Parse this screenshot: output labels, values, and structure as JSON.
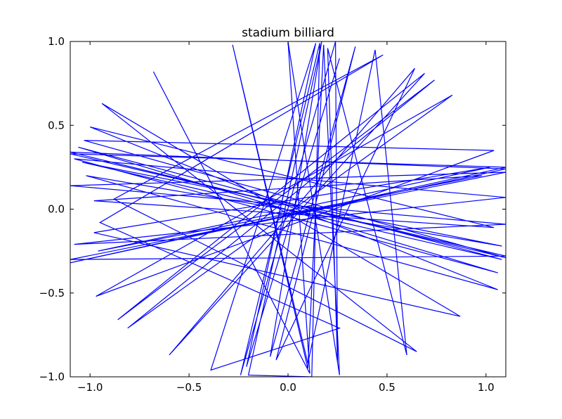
{
  "chart_data": {
    "type": "line",
    "title": "stadium billiard",
    "xlabel": "",
    "ylabel": "",
    "xlim": [
      -1.1,
      1.1
    ],
    "ylim": [
      -1.0,
      1.0
    ],
    "x_ticks": [
      -1.0,
      -0.5,
      0.0,
      0.5,
      1.0
    ],
    "x_tick_labels": [
      "−1.0",
      "−0.5",
      "0.0",
      "0.5",
      "1.0"
    ],
    "y_ticks": [
      -1.0,
      -0.5,
      0.0,
      0.5,
      1.0
    ],
    "y_tick_labels": [
      "−1.0",
      "−0.5",
      "0.0",
      "0.5",
      "1.0"
    ],
    "grid": false,
    "line_color": "#0000ff",
    "series": [
      {
        "x": [
          -0.68,
          0.11,
          0.0,
          0.26,
          0.18,
          0.1,
          -0.28,
          0.1,
          0.44,
          0.6,
          0.2,
          0.25,
          0.24,
          -0.24,
          0.16,
          0.12,
          -0.2,
          0.17,
          -0.09,
          0.34,
          -0.06,
          0.64,
          -0.6,
          0.69,
          -0.86,
          0.74,
          -0.81,
          0.83,
          -0.97,
          1.04,
          -1.03,
          1.1,
          -1.1,
          1.1,
          -1.1,
          1.1,
          -1.1,
          1.1,
          -1.1,
          1.1,
          -1.1,
          1.1,
          -1.08,
          1.1,
          -1.08,
          1.06,
          -1.06,
          1.08,
          -1.04,
          1.08,
          -1.02,
          1.06,
          -1.0,
          1.04,
          -0.98,
          0.98,
          -0.96,
          1.02,
          -0.98,
          0.87,
          -0.94,
          0.65,
          -0.88,
          0.48,
          -0.95,
          0.26,
          -0.39,
          0.14,
          -0.21,
          0.26
        ],
        "y": [
          0.82,
          -0.98,
          1.0,
          -0.99,
          0.98,
          -0.95,
          0.98,
          -0.92,
          0.95,
          -0.87,
          0.96,
          -0.92,
          1.0,
          -0.99,
          0.99,
          -1.0,
          -0.99,
          1.0,
          -0.88,
          0.97,
          -0.9,
          0.84,
          -0.87,
          0.81,
          -0.66,
          0.77,
          -0.71,
          0.68,
          -0.52,
          0.35,
          0.41,
          -0.29,
          0.34,
          0.24,
          -0.32,
          0.25,
          0.33,
          -0.28,
          -0.3,
          0.22,
          0.14,
          -0.09,
          -0.21,
          0.07,
          0.3,
          -0.38,
          0.37,
          -0.3,
          0.28,
          -0.22,
          0.2,
          -0.48,
          0.49,
          -0.11,
          0.05,
          0.2,
          -0.25,
          0.25,
          -0.14,
          -0.64,
          0.63,
          -0.85,
          0.06,
          0.92,
          -0.08,
          -0.71,
          -0.96,
          0.99,
          -0.94,
          0.9
        ]
      }
    ]
  }
}
